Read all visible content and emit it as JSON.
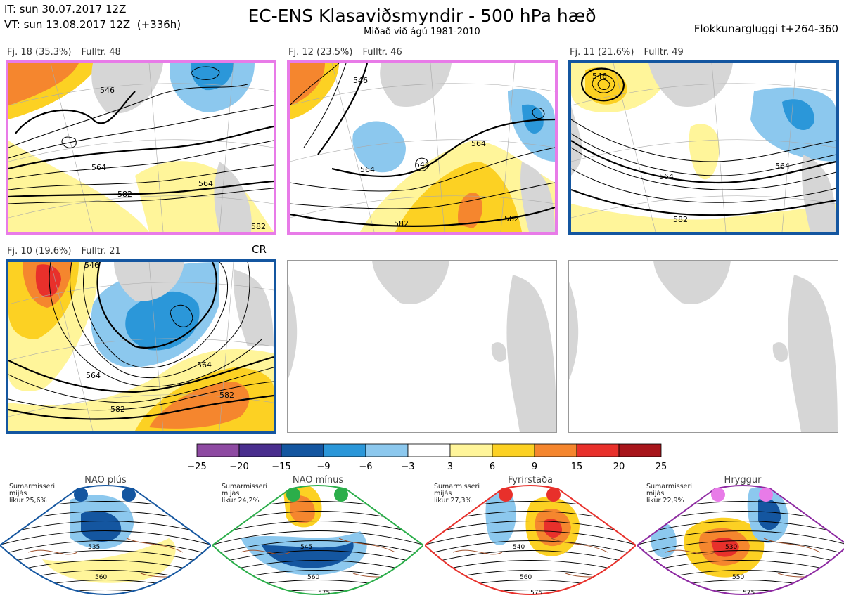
{
  "header": {
    "it": "IT: sun 30.07.2017 12Z",
    "vt": "VT: sun 13.08.2017 12Z  (+336h)",
    "title": "EC-ENS Klasaviðsmyndir - 500 hPa hæð",
    "subtitle": "Miðað við ágú 1981-2010",
    "window": "Flokkunargluggi t+264-360"
  },
  "clusters": [
    {
      "label": "Fj. 18 (35.3%)",
      "members": "Fulltr. 48",
      "regime_color": "#e87be8",
      "contours": [
        "546",
        "564",
        "582",
        "564",
        "582"
      ]
    },
    {
      "label": "Fj. 12 (23.5%)",
      "members": "Fulltr. 46",
      "regime_color": "#e87be8",
      "contours": [
        "546",
        "564",
        "546",
        "564",
        "582",
        "582"
      ]
    },
    {
      "label": "Fj. 11 (21.6%)",
      "members": "Fulltr. 49",
      "regime_color": "#1456a0",
      "contours": [
        "546",
        "564",
        "564",
        "582"
      ]
    },
    {
      "label": "Fj. 10 (19.6%)",
      "members": "Fulltr. 21",
      "regime_color": "#1456a0",
      "tag": "CR",
      "contours": [
        "546",
        "564",
        "564",
        "582",
        "582"
      ]
    }
  ],
  "colorbar": {
    "ticks": [
      "−25",
      "−20",
      "−15",
      "−9",
      "−6",
      "−3",
      "3",
      "6",
      "9",
      "15",
      "20",
      "25"
    ],
    "colors": [
      "#8e4aa2",
      "#4a2e8e",
      "#1456a0",
      "#2b97d9",
      "#8cc8ee",
      "#ffffff",
      "#fff59a",
      "#fcd123",
      "#f5862e",
      "#e8302b",
      "#a8151b"
    ]
  },
  "regimes": [
    {
      "name": "NAO plús",
      "season": "Sumarmisseri",
      "mean": "mijás",
      "prob": "líkur 25,6%",
      "color": "#1456a0",
      "contours": [
        "535",
        "560"
      ]
    },
    {
      "name": "NAO mínus",
      "season": "Sumarmisseri",
      "mean": "mijás",
      "prob": "líkur 24,2%",
      "color": "#2bae4a",
      "contours": [
        "545",
        "560",
        "575"
      ]
    },
    {
      "name": "Fyrirstaða",
      "season": "Sumarmisseri",
      "mean": "mijás",
      "prob": "líkur 27,3%",
      "color": "#e8302b",
      "contours": [
        "540",
        "560",
        "575"
      ]
    },
    {
      "name": "Hryggur",
      "season": "Sumarmisseri",
      "mean": "mijás",
      "prob": "líkur 22,9%",
      "color": "#8e2aa2",
      "dot_color": "#e87be8",
      "contours": [
        "530",
        "550",
        "575"
      ]
    }
  ]
}
